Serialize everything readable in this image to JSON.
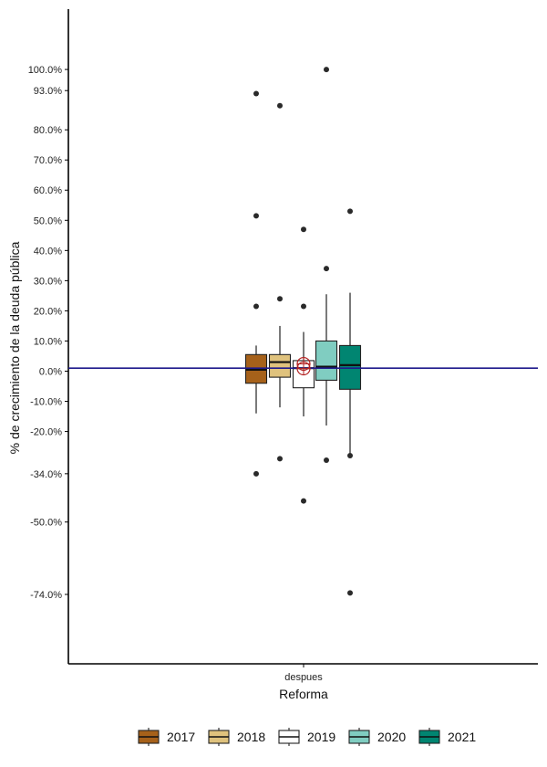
{
  "chart_data": {
    "type": "box",
    "xlabel": "Reforma",
    "ylabel": "% de crecimiento de la deuda pública",
    "categories": [
      "despues"
    ],
    "y_tick_values": [
      100,
      93,
      80,
      70,
      60,
      50,
      40,
      30,
      20,
      10,
      0,
      -10,
      -20,
      -34,
      -50,
      -74
    ],
    "y_tick_labels": [
      "100.0%",
      "93.0%",
      "80.0%",
      "70.0%",
      "60.0%",
      "50.0%",
      "40.0%",
      "30.0%",
      "20.0%",
      "10.0%",
      "0.0%",
      "-10.0%",
      "-20.0%",
      "-34.0%",
      "-50.0%",
      "-74.0%"
    ],
    "ylim": [
      -97,
      120
    ],
    "reference_line": {
      "y": 1,
      "color": "#1f1a8c"
    },
    "mean_marker": {
      "y": 1.5,
      "color": "#b22222"
    },
    "legend_position": "bottom",
    "series": [
      {
        "name": "2017",
        "color": "#a6611a",
        "q1": -4,
        "median": 0.5,
        "q3": 5.5,
        "whisker_low": -14,
        "whisker_high": 8.5,
        "outliers": [
          92,
          51.5,
          21.5,
          -34
        ]
      },
      {
        "name": "2018",
        "color": "#dfc27d",
        "q1": -2,
        "median": 3,
        "q3": 5.5,
        "whisker_low": -12,
        "whisker_high": 15,
        "outliers": [
          88,
          24,
          -29
        ]
      },
      {
        "name": "2019",
        "color": "#ffffff",
        "q1": -5.5,
        "median": 1,
        "q3": 3.5,
        "whisker_low": -15,
        "whisker_high": 13,
        "outliers": [
          47,
          21.5,
          -43
        ]
      },
      {
        "name": "2020",
        "color": "#80cdc1",
        "q1": -3,
        "median": 1.5,
        "q3": 10,
        "whisker_low": -18,
        "whisker_high": 25.5,
        "outliers": [
          100,
          34,
          -29.5
        ]
      },
      {
        "name": "2021",
        "color": "#018571",
        "q1": -6,
        "median": 2,
        "q3": 8.5,
        "whisker_low": -28,
        "whisker_high": 26,
        "outliers": [
          53,
          -28,
          -73.5
        ]
      }
    ]
  }
}
